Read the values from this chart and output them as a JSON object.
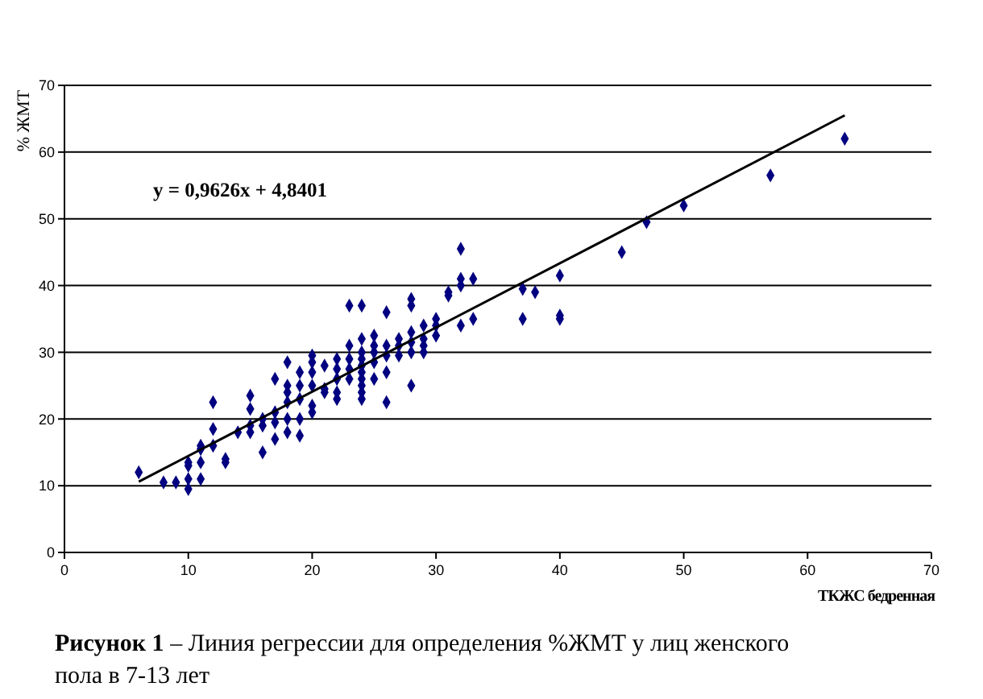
{
  "chart_data": {
    "type": "scatter",
    "xlabel": "ТКЖС бедренная",
    "ylabel": "% ЖМТ",
    "xlim": [
      0,
      70
    ],
    "ylim": [
      0,
      70
    ],
    "xticks": [
      0,
      10,
      20,
      30,
      40,
      50,
      60,
      70
    ],
    "yticks": [
      0,
      10,
      20,
      30,
      40,
      50,
      60,
      70
    ],
    "grid": "y",
    "marker": "diamond",
    "annotations": [
      "y = 0,9626x + 4,8401",
      "Рисунок 1 – Линия регрессии для определения %ЖМТ у лиц женского пола в 7-13 лет"
    ],
    "series": [
      {
        "color": "#000080",
        "x": [
          6,
          8,
          9,
          10,
          10,
          10,
          10,
          11,
          11,
          11,
          11,
          12,
          12,
          12,
          13,
          13,
          14,
          15,
          15,
          15,
          15,
          16,
          16,
          16,
          17,
          17,
          17,
          17,
          18,
          18,
          18,
          18,
          18,
          18,
          19,
          19,
          19,
          19,
          19,
          20,
          20,
          20,
          20,
          20,
          20,
          21,
          21,
          21,
          22,
          22,
          22,
          22,
          22,
          23,
          23,
          23,
          23,
          23,
          24,
          24,
          24,
          24,
          24,
          24,
          24,
          24,
          24,
          24,
          25,
          25,
          25,
          25,
          25,
          26,
          26,
          26,
          26,
          26,
          27,
          27,
          27,
          28,
          28,
          28,
          28,
          28,
          28,
          29,
          29,
          29,
          29,
          30,
          30,
          30,
          31,
          31,
          32,
          32,
          32,
          32,
          33,
          33,
          37,
          37,
          38,
          40,
          40,
          40,
          45,
          47,
          50,
          57,
          63
        ],
        "values": [
          12,
          10.5,
          10.5,
          9.5,
          11,
          13,
          13.5,
          11,
          13.5,
          15.5,
          16,
          16,
          18.5,
          22.5,
          13.5,
          14,
          18,
          18,
          19,
          21.5,
          23.5,
          15,
          19,
          20,
          17,
          19.5,
          21,
          26,
          18,
          20,
          22.5,
          24,
          25,
          28.5,
          17.5,
          20,
          23,
          25,
          27,
          21,
          22,
          25,
          27,
          28.5,
          29.5,
          24,
          24.5,
          28,
          23,
          24,
          26,
          27.5,
          29,
          26,
          27.5,
          29,
          31,
          37,
          23,
          24,
          25,
          26,
          27,
          28,
          29,
          30,
          32,
          37,
          26,
          28.5,
          30,
          31,
          32.5,
          22.5,
          27,
          29.5,
          31,
          36,
          29.5,
          31,
          32,
          25,
          30,
          31.5,
          33,
          37,
          38,
          30,
          31,
          32,
          34,
          32.5,
          34,
          35,
          38.5,
          39,
          34,
          40,
          41,
          45.5,
          35,
          41,
          35,
          39.5,
          39,
          35,
          35.5,
          41.5,
          45,
          49.5,
          52,
          56.5,
          62
        ]
      },
      {
        "type": "line",
        "color": "#000000",
        "x": [
          6,
          63
        ],
        "values": [
          10.6,
          65.5
        ],
        "marker": "none",
        "line_style": "solid"
      }
    ]
  }
}
